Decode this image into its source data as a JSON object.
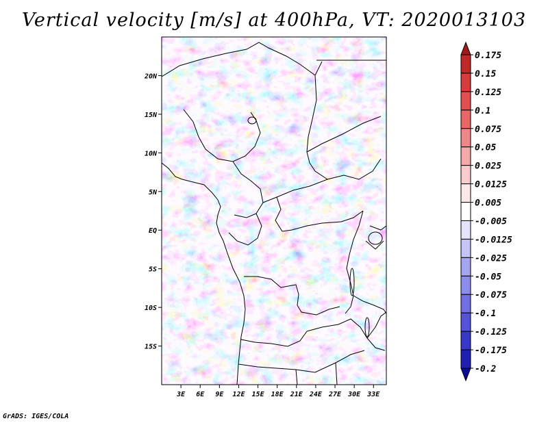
{
  "title": "Vertical velocity [m/s] at 400hPa, VT: 2020013103",
  "credit": "GrADS: IGES/COLA",
  "chart_data": {
    "type": "heatmap",
    "variable": "Vertical velocity",
    "units": "m/s",
    "level": "400hPa",
    "valid_time": "2020013103",
    "lon_range": [
      0,
      35
    ],
    "lat_range": [
      -20,
      25
    ],
    "x_ticks": [
      {
        "value": 3,
        "label": "3E"
      },
      {
        "value": 6,
        "label": "6E"
      },
      {
        "value": 9,
        "label": "9E"
      },
      {
        "value": 12,
        "label": "12E"
      },
      {
        "value": 15,
        "label": "15E"
      },
      {
        "value": 18,
        "label": "18E"
      },
      {
        "value": 21,
        "label": "21E"
      },
      {
        "value": 24,
        "label": "24E"
      },
      {
        "value": 27,
        "label": "27E"
      },
      {
        "value": 30,
        "label": "30E"
      },
      {
        "value": 33,
        "label": "33E"
      }
    ],
    "y_ticks": [
      {
        "value": 20,
        "label": "20N"
      },
      {
        "value": 15,
        "label": "15N"
      },
      {
        "value": 10,
        "label": "10N"
      },
      {
        "value": 5,
        "label": "5N"
      },
      {
        "value": 0,
        "label": "EQ"
      },
      {
        "value": -5,
        "label": "5S"
      },
      {
        "value": -10,
        "label": "10S"
      },
      {
        "value": -15,
        "label": "15S"
      }
    ],
    "colorbar": {
      "levels": [
        "0.175",
        "0.15",
        "0.125",
        "0.1",
        "0.075",
        "0.05",
        "0.025",
        "0.0125",
        "0.005",
        "-0.005",
        "-0.0125",
        "-0.025",
        "-0.05",
        "-0.075",
        "-0.1",
        "-0.125",
        "-0.175",
        "-0.2"
      ],
      "colors": [
        "#a01818",
        "#c02828",
        "#d63c3c",
        "#e05050",
        "#e86868",
        "#ee8888",
        "#f4aaaa",
        "#f8cccc",
        "#fce8e8",
        "#ffffff",
        "#e4e4fc",
        "#c4c4f6",
        "#a6a6f0",
        "#8c8cea",
        "#7070e2",
        "#5454da",
        "#3838c8",
        "#2020b0",
        "#0c0c98"
      ]
    }
  }
}
